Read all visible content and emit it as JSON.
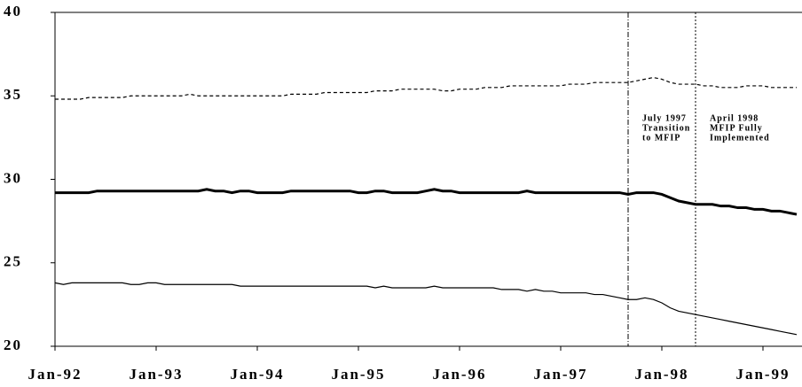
{
  "chart_data": {
    "type": "line",
    "categories": [
      "Jan-92",
      null,
      null,
      null,
      null,
      null,
      null,
      null,
      null,
      null,
      null,
      null,
      "Jan-93",
      null,
      null,
      null,
      null,
      null,
      null,
      null,
      null,
      null,
      null,
      null,
      "Jan-94",
      null,
      null,
      null,
      null,
      null,
      null,
      null,
      null,
      null,
      null,
      null,
      "Jan-95",
      null,
      null,
      null,
      null,
      null,
      null,
      null,
      null,
      null,
      null,
      null,
      "Jan-96",
      null,
      null,
      null,
      null,
      null,
      null,
      null,
      null,
      null,
      null,
      null,
      "Jan-97",
      null,
      null,
      null,
      null,
      null,
      null,
      null,
      null,
      null,
      null,
      null,
      "Jan-98",
      null,
      null,
      null,
      null,
      null,
      null,
      null,
      null,
      null,
      null,
      null,
      "Jan-99",
      null,
      null,
      null,
      null
    ],
    "ylim": [
      20,
      40
    ],
    "yticks": [
      20,
      25,
      30,
      35,
      40
    ],
    "series": [
      {
        "color": "#000000",
        "line_style": "dashed",
        "width": 1.2,
        "values": [
          34.8,
          34.8,
          34.8,
          34.8,
          34.9,
          34.9,
          34.9,
          34.9,
          34.9,
          35.0,
          35.0,
          35.0,
          35.0,
          35.0,
          35.0,
          35.0,
          35.1,
          35.0,
          35.0,
          35.0,
          35.0,
          35.0,
          35.0,
          35.0,
          35.0,
          35.0,
          35.0,
          35.0,
          35.1,
          35.1,
          35.1,
          35.1,
          35.2,
          35.2,
          35.2,
          35.2,
          35.2,
          35.2,
          35.3,
          35.3,
          35.3,
          35.4,
          35.4,
          35.4,
          35.4,
          35.4,
          35.3,
          35.3,
          35.4,
          35.4,
          35.4,
          35.5,
          35.5,
          35.5,
          35.6,
          35.6,
          35.6,
          35.6,
          35.6,
          35.6,
          35.6,
          35.7,
          35.7,
          35.7,
          35.8,
          35.8,
          35.8,
          35.8,
          35.8,
          35.9,
          36.0,
          36.1,
          36.0,
          35.8,
          35.7,
          35.7,
          35.7,
          35.6,
          35.6,
          35.5,
          35.5,
          35.5,
          35.6,
          35.6,
          35.6,
          35.5,
          35.5,
          35.5,
          35.5
        ]
      },
      {
        "color": "#000000",
        "line_style": "solid",
        "width": 3,
        "values": [
          29.2,
          29.2,
          29.2,
          29.2,
          29.2,
          29.3,
          29.3,
          29.3,
          29.3,
          29.3,
          29.3,
          29.3,
          29.3,
          29.3,
          29.3,
          29.3,
          29.3,
          29.3,
          29.4,
          29.3,
          29.3,
          29.2,
          29.3,
          29.3,
          29.2,
          29.2,
          29.2,
          29.2,
          29.3,
          29.3,
          29.3,
          29.3,
          29.3,
          29.3,
          29.3,
          29.3,
          29.2,
          29.2,
          29.3,
          29.3,
          29.2,
          29.2,
          29.2,
          29.2,
          29.3,
          29.4,
          29.3,
          29.3,
          29.2,
          29.2,
          29.2,
          29.2,
          29.2,
          29.2,
          29.2,
          29.2,
          29.3,
          29.2,
          29.2,
          29.2,
          29.2,
          29.2,
          29.2,
          29.2,
          29.2,
          29.2,
          29.2,
          29.2,
          29.1,
          29.2,
          29.2,
          29.2,
          29.1,
          28.9,
          28.7,
          28.6,
          28.5,
          28.5,
          28.5,
          28.4,
          28.4,
          28.3,
          28.3,
          28.2,
          28.2,
          28.1,
          28.1,
          28.0,
          27.9
        ]
      },
      {
        "color": "#000000",
        "line_style": "solid",
        "width": 1.2,
        "values": [
          23.8,
          23.7,
          23.8,
          23.8,
          23.8,
          23.8,
          23.8,
          23.8,
          23.8,
          23.7,
          23.7,
          23.8,
          23.8,
          23.7,
          23.7,
          23.7,
          23.7,
          23.7,
          23.7,
          23.7,
          23.7,
          23.7,
          23.6,
          23.6,
          23.6,
          23.6,
          23.6,
          23.6,
          23.6,
          23.6,
          23.6,
          23.6,
          23.6,
          23.6,
          23.6,
          23.6,
          23.6,
          23.6,
          23.5,
          23.6,
          23.5,
          23.5,
          23.5,
          23.5,
          23.5,
          23.6,
          23.5,
          23.5,
          23.5,
          23.5,
          23.5,
          23.5,
          23.5,
          23.4,
          23.4,
          23.4,
          23.3,
          23.4,
          23.3,
          23.3,
          23.2,
          23.2,
          23.2,
          23.2,
          23.1,
          23.1,
          23.0,
          22.9,
          22.8,
          22.8,
          22.9,
          22.8,
          22.6,
          22.3,
          22.1,
          22.0,
          21.9,
          21.8,
          21.7,
          21.6,
          21.5,
          21.4,
          21.3,
          21.2,
          21.1,
          21.0,
          20.9,
          20.8,
          20.7
        ]
      }
    ],
    "vlines": [
      {
        "x_index": 68,
        "line_style": "dashdot",
        "label": [
          "July 1997",
          "Transition",
          "to MFIP"
        ]
      },
      {
        "x_index": 76,
        "line_style": "dotted",
        "label": [
          "April 1998",
          "MFIP Fully",
          "Implemented"
        ]
      }
    ]
  }
}
